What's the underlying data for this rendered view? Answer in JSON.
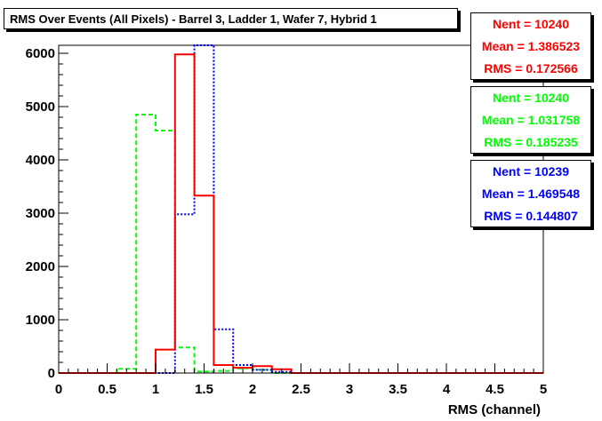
{
  "chart_data": {
    "type": "histogram",
    "title": "RMS Over Events (All Pixels) - Barrel 3, Ladder 1, Wafer 7, Hybrid 1",
    "xlabel": "RMS (channel)",
    "ylabel": "",
    "xlim": [
      0,
      5
    ],
    "ylim": [
      0,
      6150
    ],
    "x_ticks": [
      "0",
      "0.5",
      "1",
      "1.5",
      "2",
      "2.5",
      "3",
      "3.5",
      "4",
      "4.5",
      "5"
    ],
    "y_ticks": [
      "0",
      "1000",
      "2000",
      "3000",
      "4000",
      "5000",
      "6000"
    ],
    "bin_edges": [
      0.0,
      0.2,
      0.4,
      0.6,
      0.8,
      1.0,
      1.2,
      1.4,
      1.6,
      1.8,
      2.0,
      2.2,
      2.4,
      2.6
    ],
    "series": [
      {
        "color": "#00ff00",
        "linestyle": "dashed",
        "values": [
          0,
          0,
          0,
          80,
          4850,
          4550,
          480,
          30,
          40,
          90,
          60,
          0,
          0
        ],
        "stats": {
          "nent": "Nent = 10240",
          "mean": "Mean = 1.031758",
          "rms": "RMS = 0.185235"
        }
      },
      {
        "color": "#0000ff",
        "linestyle": "dotted",
        "values": [
          0,
          0,
          0,
          0,
          0,
          0,
          2980,
          6150,
          820,
          150,
          60,
          20,
          0
        ],
        "stats": {
          "nent": "Nent = 10239",
          "mean": "Mean = 1.469548",
          "rms": "RMS = 0.144807"
        }
      },
      {
        "color": "#ff0000",
        "linestyle": "solid",
        "values": [
          0,
          0,
          0,
          0,
          0,
          440,
          5980,
          3330,
          150,
          100,
          130,
          70,
          0
        ],
        "stats": {
          "nent": "Nent = 10240",
          "mean": "Mean = 1.386523",
          "rms": "RMS = 0.172566"
        }
      }
    ],
    "stats_box_order": [
      2,
      0,
      1
    ],
    "grid": false
  }
}
